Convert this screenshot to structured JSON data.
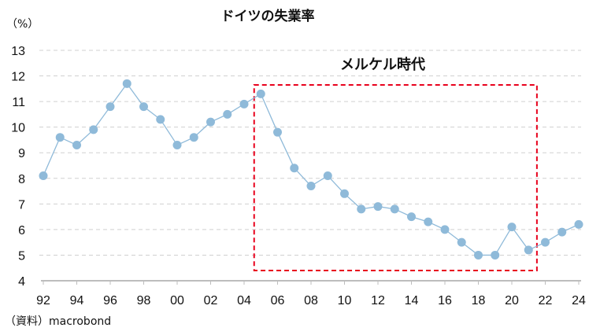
{
  "chart_data": {
    "type": "line",
    "title": "ドイツの失業率",
    "ylabel": "（%）",
    "xlabel": "",
    "source": "（資料）macrobond",
    "x": [
      1992,
      1993,
      1994,
      1995,
      1996,
      1997,
      1998,
      1999,
      2000,
      2001,
      2002,
      2003,
      2004,
      2005,
      2006,
      2007,
      2008,
      2009,
      2010,
      2011,
      2012,
      2013,
      2014,
      2015,
      2016,
      2017,
      2018,
      2019,
      2020,
      2021,
      2022,
      2023,
      2024
    ],
    "series": [
      {
        "name": "失業率",
        "color": "#8fbad9",
        "values": [
          8.1,
          9.6,
          9.3,
          9.9,
          10.8,
          11.7,
          10.8,
          10.3,
          9.3,
          9.6,
          10.2,
          10.5,
          10.9,
          11.3,
          9.8,
          8.4,
          7.7,
          8.1,
          7.4,
          6.8,
          6.9,
          6.8,
          6.5,
          6.3,
          6.0,
          5.5,
          5.0,
          5.0,
          6.1,
          5.2,
          5.5,
          5.9,
          6.2
        ]
      }
    ],
    "xlim": [
      1992,
      2024
    ],
    "ylim": [
      4,
      13
    ],
    "yticks": [
      "4",
      "5",
      "6",
      "7",
      "8",
      "9",
      "10",
      "11",
      "12",
      "13"
    ],
    "xticks": [
      {
        "year": 1992,
        "label": "92"
      },
      {
        "year": 1994,
        "label": "94"
      },
      {
        "year": 1996,
        "label": "96"
      },
      {
        "year": 1998,
        "label": "98"
      },
      {
        "year": 2000,
        "label": "00"
      },
      {
        "year": 2002,
        "label": "02"
      },
      {
        "year": 2004,
        "label": "04"
      },
      {
        "year": 2006,
        "label": "06"
      },
      {
        "year": 2008,
        "label": "08"
      },
      {
        "year": 2010,
        "label": "10"
      },
      {
        "year": 2012,
        "label": "12"
      },
      {
        "year": 2014,
        "label": "14"
      },
      {
        "year": 2016,
        "label": "16"
      },
      {
        "year": 2018,
        "label": "18"
      },
      {
        "year": 2020,
        "label": "20"
      },
      {
        "year": 2022,
        "label": "22"
      },
      {
        "year": 2024,
        "label": "24"
      }
    ],
    "grid": true,
    "annotation": {
      "label": "メルケル時代",
      "x_range": [
        2004.6,
        2021.5
      ],
      "y_range": [
        4.4,
        11.65
      ],
      "color": "#e8001c"
    }
  }
}
